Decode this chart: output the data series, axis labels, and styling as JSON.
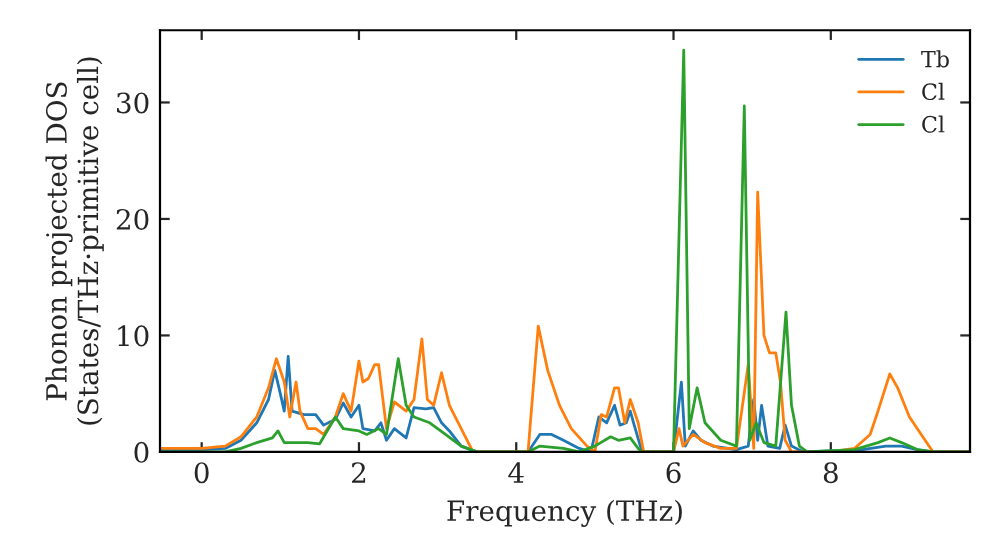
{
  "chart_data": {
    "type": "line",
    "xlabel": "Frequency (THz)",
    "ylabel": "Phonon projected DOS\n(States/THz·primitive cell)",
    "xlim": [
      -0.53,
      9.77
    ],
    "ylim": [
      0,
      36.2
    ],
    "xticks": [
      0,
      2,
      4,
      6,
      8
    ],
    "yticks": [
      0,
      10,
      20,
      30
    ],
    "grid": false,
    "legend": "top right",
    "series": [
      {
        "name": "Tb",
        "color": "#1f77b4",
        "x": [
          -0.53,
          0,
          0.3,
          0.5,
          0.7,
          0.85,
          0.93,
          1.0,
          1.05,
          1.1,
          1.15,
          1.3,
          1.45,
          1.55,
          1.7,
          1.8,
          1.9,
          2.0,
          2.05,
          2.2,
          2.28,
          2.35,
          2.45,
          2.6,
          2.7,
          2.85,
          2.95,
          3.05,
          3.15,
          3.3,
          3.5,
          4.15,
          4.3,
          4.45,
          4.6,
          4.8,
          4.95,
          5.05,
          5.15,
          5.25,
          5.32,
          5.4,
          5.45,
          5.5,
          5.6,
          6.0,
          6.1,
          6.15,
          6.25,
          6.35,
          6.5,
          6.8,
          6.95,
          7.02,
          7.07,
          7.12,
          7.2,
          7.35,
          7.42,
          7.5,
          7.65,
          8.4,
          8.7,
          8.9,
          9.1,
          9.3,
          9.77
        ],
        "values": [
          0.2,
          0.2,
          0.3,
          1,
          2.5,
          4.5,
          7,
          5,
          3.5,
          8.2,
          3.5,
          3.2,
          3.2,
          2.3,
          2.8,
          4.2,
          3,
          4,
          2,
          1.8,
          2.5,
          1,
          2,
          1.2,
          3.8,
          3.7,
          3.8,
          2.5,
          1.8,
          0.5,
          0,
          0,
          1.5,
          1.5,
          1,
          0.3,
          0,
          3,
          2.5,
          4,
          2.3,
          2.5,
          3.5,
          2.3,
          0,
          0,
          6,
          0.5,
          1.8,
          1,
          0.5,
          0.2,
          0.5,
          4.5,
          1,
          4,
          0.5,
          0.3,
          2.3,
          0.5,
          0,
          0.2,
          0.5,
          0.5,
          0.2,
          0,
          0
        ]
      },
      {
        "name": "Cl",
        "color": "#ff7f0e",
        "x": [
          -0.53,
          0,
          0.3,
          0.5,
          0.7,
          0.85,
          0.95,
          1.05,
          1.12,
          1.2,
          1.25,
          1.35,
          1.45,
          1.55,
          1.7,
          1.8,
          1.9,
          2.0,
          2.05,
          2.12,
          2.2,
          2.25,
          2.35,
          2.45,
          2.6,
          2.7,
          2.8,
          2.87,
          2.95,
          3.05,
          3.15,
          3.3,
          3.45,
          4.15,
          4.28,
          4.4,
          4.55,
          4.7,
          4.9,
          5.0,
          5.08,
          5.15,
          5.25,
          5.3,
          5.38,
          5.45,
          5.55,
          5.62,
          6.0,
          6.07,
          6.12,
          6.25,
          6.4,
          6.6,
          6.8,
          6.95,
          7.02,
          7.07,
          7.15,
          7.22,
          7.3,
          7.36,
          7.42,
          7.5,
          8.0,
          8.3,
          8.5,
          8.6,
          8.75,
          8.85,
          9.0,
          9.15,
          9.3,
          9.77
        ],
        "values": [
          0.3,
          0.3,
          0.5,
          1.3,
          3,
          5.5,
          8,
          6,
          3,
          6,
          3.5,
          2,
          2,
          1.5,
          3,
          5,
          3.5,
          7.8,
          6,
          6.3,
          7.5,
          7.5,
          2,
          4.3,
          3.5,
          4.5,
          9.7,
          4.5,
          4,
          6.8,
          4,
          2,
          0,
          0,
          10.8,
          7,
          4,
          2,
          0.5,
          0,
          3.2,
          3,
          5.5,
          5.5,
          2.5,
          4.5,
          2.5,
          0,
          0,
          2,
          0.5,
          1.5,
          0.8,
          0.3,
          0.3,
          7.5,
          0.3,
          22.3,
          10,
          8.5,
          8.5,
          6,
          1,
          0,
          0,
          0.3,
          1.5,
          3.5,
          6.7,
          5.5,
          3,
          1.5,
          0,
          0
        ]
      },
      {
        "name": "Cl",
        "color": "#2ca02c",
        "x": [
          -0.53,
          0.3,
          0.5,
          0.7,
          0.9,
          0.97,
          1.05,
          1.2,
          1.35,
          1.5,
          1.7,
          1.8,
          2.0,
          2.1,
          2.25,
          2.35,
          2.5,
          2.6,
          2.7,
          2.9,
          3.1,
          3.3,
          3.5,
          4.15,
          4.3,
          4.6,
          4.8,
          5.0,
          5.2,
          5.3,
          5.45,
          5.55,
          5.6,
          6.0,
          6.13,
          6.2,
          6.3,
          6.4,
          6.6,
          6.8,
          6.9,
          6.97,
          7.05,
          7.15,
          7.3,
          7.43,
          7.5,
          7.6,
          7.7,
          8.3,
          8.6,
          8.75,
          8.9,
          9.1,
          9.3,
          9.77
        ],
        "values": [
          0,
          0,
          0.3,
          0.8,
          1.2,
          1.8,
          0.8,
          0.8,
          0.8,
          0.7,
          3,
          2,
          1.8,
          1.5,
          2,
          1.5,
          8,
          4,
          3,
          2.5,
          1.5,
          0.5,
          0,
          0,
          0.5,
          0.3,
          0,
          0.5,
          1.3,
          1,
          1.2,
          0.3,
          0,
          0,
          34.5,
          2,
          5.5,
          2.5,
          1,
          0.5,
          29.7,
          1,
          2.5,
          0.8,
          0.5,
          12,
          4,
          0.5,
          0,
          0.2,
          0.8,
          1.2,
          0.8,
          0.2,
          0,
          0
        ]
      }
    ]
  }
}
